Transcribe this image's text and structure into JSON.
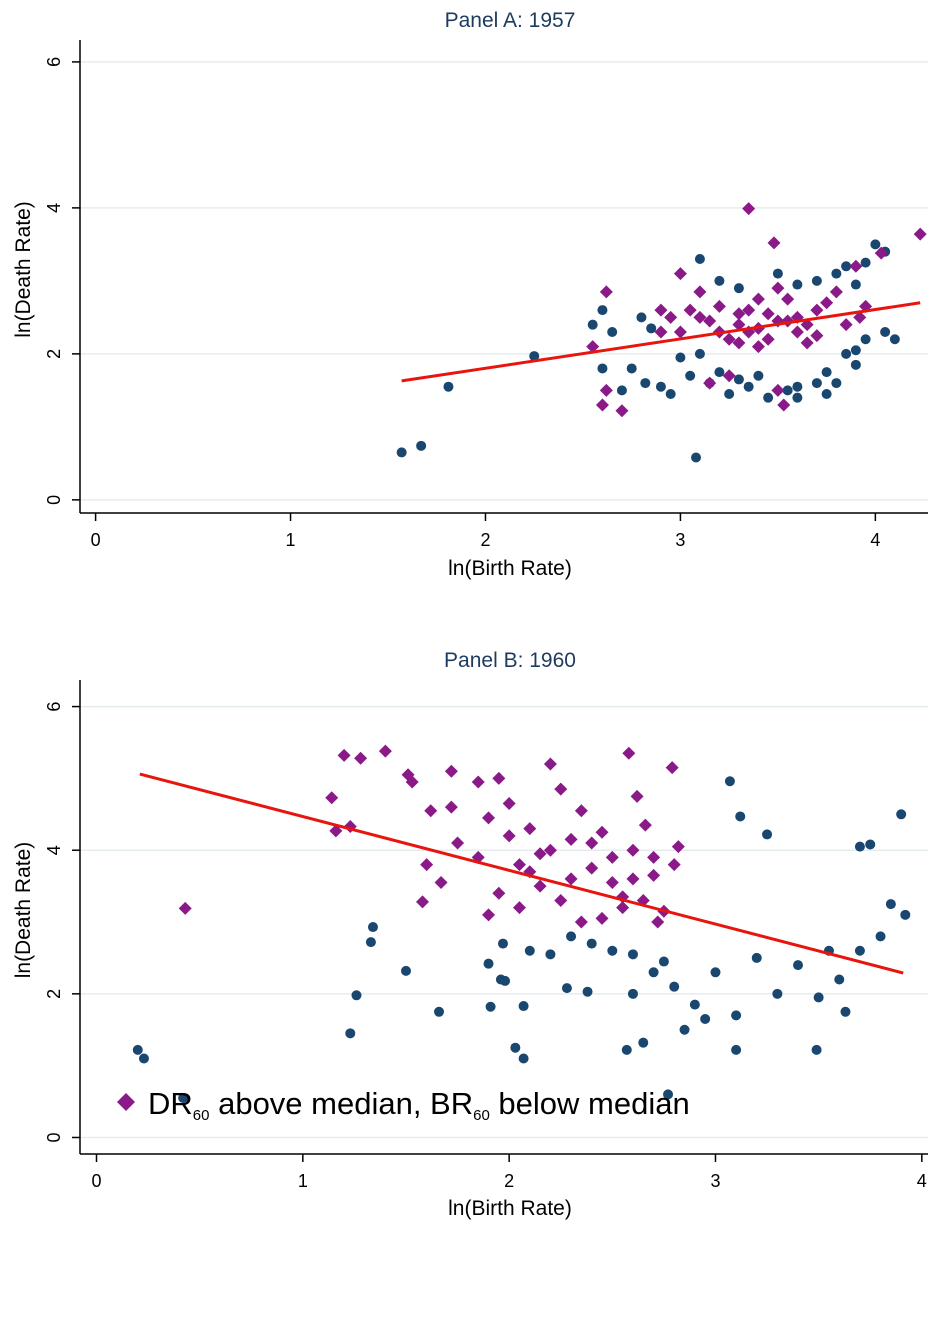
{
  "chart_data": [
    {
      "type": "scatter",
      "title": "Panel A: 1957",
      "xlabel": "ln(Birth Rate)",
      "ylabel": "ln(Death Rate)",
      "xlim": [
        -0.08,
        4.27
      ],
      "ylim": [
        -0.18,
        6.3
      ],
      "xticks": [
        0,
        1,
        2,
        3,
        4
      ],
      "yticks": [
        0,
        2,
        4,
        6
      ],
      "grid": true,
      "series": [
        {
          "marker": "circle",
          "color": "#1a476f",
          "points": [
            [
              1.57,
              0.65
            ],
            [
              1.67,
              0.74
            ],
            [
              1.81,
              1.55
            ],
            [
              2.25,
              1.97
            ],
            [
              3.08,
              0.58
            ],
            [
              2.6,
              1.8
            ],
            [
              2.7,
              1.5
            ],
            [
              2.75,
              1.8
            ],
            [
              2.82,
              1.6
            ],
            [
              2.9,
              1.55
            ],
            [
              2.95,
              1.45
            ],
            [
              3.0,
              1.95
            ],
            [
              3.05,
              1.7
            ],
            [
              3.1,
              2.0
            ],
            [
              3.15,
              1.6
            ],
            [
              3.2,
              1.75
            ],
            [
              3.3,
              1.65
            ],
            [
              3.35,
              1.55
            ],
            [
              3.4,
              1.7
            ],
            [
              3.55,
              1.5
            ],
            [
              3.6,
              1.4
            ],
            [
              3.7,
              1.6
            ],
            [
              3.75,
              1.75
            ],
            [
              3.8,
              1.6
            ],
            [
              3.85,
              2.0
            ],
            [
              3.9,
              2.05
            ],
            [
              3.95,
              2.2
            ],
            [
              4.05,
              2.3
            ],
            [
              4.1,
              2.2
            ],
            [
              3.95,
              3.25
            ],
            [
              4.0,
              3.5
            ],
            [
              4.05,
              3.4
            ],
            [
              3.9,
              2.95
            ],
            [
              3.8,
              3.1
            ],
            [
              3.85,
              3.2
            ],
            [
              2.55,
              2.4
            ],
            [
              2.6,
              2.6
            ],
            [
              2.65,
              2.3
            ],
            [
              2.8,
              2.5
            ],
            [
              2.85,
              2.35
            ],
            [
              3.1,
              3.3
            ],
            [
              3.2,
              3.0
            ],
            [
              3.3,
              2.9
            ],
            [
              3.5,
              3.1
            ],
            [
              3.6,
              2.95
            ],
            [
              3.7,
              3.0
            ],
            [
              3.45,
              1.4
            ],
            [
              3.25,
              1.45
            ],
            [
              3.6,
              1.55
            ],
            [
              3.9,
              1.85
            ],
            [
              3.75,
              1.45
            ]
          ]
        },
        {
          "marker": "diamond",
          "color": "#8b1a89",
          "points": [
            [
              3.35,
              3.99
            ],
            [
              3.48,
              3.52
            ],
            [
              4.23,
              3.64
            ],
            [
              2.62,
              2.85
            ],
            [
              2.55,
              2.1
            ],
            [
              2.6,
              1.3
            ],
            [
              2.7,
              1.22
            ],
            [
              2.62,
              1.5
            ],
            [
              2.9,
              2.3
            ],
            [
              3.0,
              3.1
            ],
            [
              3.1,
              2.85
            ],
            [
              3.2,
              2.3
            ],
            [
              3.35,
              2.6
            ],
            [
              3.45,
              2.2
            ],
            [
              3.55,
              2.75
            ],
            [
              3.65,
              2.4
            ],
            [
              3.8,
              2.85
            ],
            [
              3.95,
              2.65
            ],
            [
              4.03,
              3.38
            ],
            [
              3.9,
              3.2
            ],
            [
              3.7,
              2.6
            ],
            [
              3.6,
              2.3
            ],
            [
              3.5,
              2.45
            ],
            [
              3.4,
              2.35
            ],
            [
              3.3,
              2.55
            ],
            [
              3.25,
              2.2
            ],
            [
              3.15,
              2.45
            ],
            [
              3.05,
              2.6
            ],
            [
              2.95,
              2.5
            ],
            [
              3.5,
              1.5
            ],
            [
              3.53,
              1.3
            ],
            [
              3.25,
              1.7
            ],
            [
              3.15,
              1.6
            ],
            [
              3.4,
              2.75
            ],
            [
              3.5,
              2.9
            ],
            [
              3.3,
              2.4
            ],
            [
              3.45,
              2.55
            ],
            [
              3.6,
              2.5
            ],
            [
              3.2,
              2.65
            ],
            [
              3.35,
              2.3
            ],
            [
              3.7,
              2.25
            ],
            [
              3.75,
              2.7
            ],
            [
              3.1,
              2.5
            ],
            [
              3.0,
              2.3
            ],
            [
              2.9,
              2.6
            ],
            [
              3.55,
              2.45
            ],
            [
              3.65,
              2.15
            ],
            [
              3.85,
              2.4
            ],
            [
              3.92,
              2.5
            ],
            [
              3.4,
              2.1
            ],
            [
              3.3,
              2.15
            ]
          ]
        }
      ],
      "fit_line": {
        "x": [
          1.57,
          4.23
        ],
        "y": [
          1.63,
          2.7
        ],
        "color": "#e8150f"
      }
    },
    {
      "type": "scatter",
      "title": "Panel B: 1960",
      "xlabel": "ln(Birth Rate)",
      "ylabel": "ln(Death Rate)",
      "xlim": [
        -0.08,
        4.03
      ],
      "ylim": [
        -0.23,
        6.37
      ],
      "xticks": [
        0,
        1,
        2,
        3,
        4
      ],
      "yticks": [
        0,
        2,
        4,
        6
      ],
      "grid": true,
      "series": [
        {
          "marker": "circle",
          "color": "#1a476f",
          "points": [
            [
              0.2,
              1.22
            ],
            [
              0.23,
              1.1
            ],
            [
              0.42,
              0.55
            ],
            [
              1.23,
              1.45
            ],
            [
              1.26,
              1.98
            ],
            [
              1.33,
              2.72
            ],
            [
              1.34,
              2.93
            ],
            [
              1.5,
              2.32
            ],
            [
              1.66,
              1.75
            ],
            [
              1.9,
              2.42
            ],
            [
              1.96,
              2.2
            ],
            [
              1.98,
              2.18
            ],
            [
              1.91,
              1.82
            ],
            [
              2.03,
              1.25
            ],
            [
              2.07,
              1.1
            ],
            [
              2.07,
              1.83
            ],
            [
              2.28,
              2.08
            ],
            [
              2.38,
              2.03
            ],
            [
              2.57,
              1.22
            ],
            [
              2.65,
              1.32
            ],
            [
              2.77,
              0.6
            ],
            [
              2.85,
              1.5
            ],
            [
              3.07,
              4.96
            ],
            [
              3.12,
              4.47
            ],
            [
              3.25,
              4.22
            ],
            [
              3.63,
              1.75
            ],
            [
              3.49,
              1.22
            ],
            [
              3.1,
              1.22
            ],
            [
              3.9,
              4.5
            ],
            [
              3.75,
              4.08
            ],
            [
              3.7,
              4.05
            ],
            [
              3.85,
              3.25
            ],
            [
              3.92,
              3.1
            ],
            [
              3.8,
              2.8
            ],
            [
              3.6,
              2.2
            ],
            [
              3.5,
              1.95
            ],
            [
              3.3,
              2.0
            ],
            [
              3.1,
              1.7
            ],
            [
              2.95,
              1.65
            ],
            [
              2.9,
              1.85
            ],
            [
              2.8,
              2.1
            ],
            [
              2.7,
              2.3
            ],
            [
              2.6,
              2.55
            ],
            [
              2.5,
              2.6
            ],
            [
              2.4,
              2.7
            ],
            [
              2.3,
              2.8
            ],
            [
              2.2,
              2.55
            ],
            [
              2.1,
              2.6
            ],
            [
              1.97,
              2.7
            ],
            [
              2.6,
              2.0
            ],
            [
              2.75,
              2.45
            ],
            [
              3.0,
              2.3
            ],
            [
              3.2,
              2.5
            ],
            [
              3.4,
              2.4
            ],
            [
              3.55,
              2.6
            ],
            [
              3.7,
              2.6
            ]
          ]
        },
        {
          "marker": "diamond",
          "color": "#8b1a89",
          "points": [
            [
              0.43,
              3.19
            ],
            [
              1.14,
              4.73
            ],
            [
              1.16,
              4.27
            ],
            [
              1.2,
              5.32
            ],
            [
              1.23,
              4.33
            ],
            [
              1.28,
              5.28
            ],
            [
              1.4,
              5.38
            ],
            [
              1.51,
              5.05
            ],
            [
              1.53,
              4.95
            ],
            [
              1.58,
              3.28
            ],
            [
              1.6,
              3.8
            ],
            [
              1.62,
              4.55
            ],
            [
              1.67,
              3.55
            ],
            [
              1.72,
              5.1
            ],
            [
              1.72,
              4.6
            ],
            [
              1.75,
              4.1
            ],
            [
              1.85,
              4.95
            ],
            [
              1.9,
              4.45
            ],
            [
              1.95,
              5.0
            ],
            [
              2.0,
              4.65
            ],
            [
              2.05,
              3.8
            ],
            [
              2.1,
              4.3
            ],
            [
              2.15,
              3.95
            ],
            [
              2.2,
              5.2
            ],
            [
              2.25,
              4.85
            ],
            [
              2.3,
              4.15
            ],
            [
              2.35,
              4.55
            ],
            [
              2.4,
              3.75
            ],
            [
              2.45,
              4.25
            ],
            [
              2.5,
              3.55
            ],
            [
              2.55,
              3.35
            ],
            [
              2.58,
              5.35
            ],
            [
              2.6,
              4.0
            ],
            [
              2.62,
              4.75
            ],
            [
              2.66,
              4.35
            ],
            [
              2.7,
              3.65
            ],
            [
              2.75,
              3.15
            ],
            [
              2.79,
              5.15
            ],
            [
              2.82,
              4.05
            ],
            [
              1.9,
              3.1
            ],
            [
              1.95,
              3.4
            ],
            [
              2.05,
              3.2
            ],
            [
              2.15,
              3.5
            ],
            [
              2.25,
              3.3
            ],
            [
              2.35,
              3.0
            ],
            [
              2.45,
              3.05
            ],
            [
              2.55,
              3.2
            ],
            [
              2.65,
              3.3
            ],
            [
              2.72,
              3.0
            ],
            [
              2.8,
              3.8
            ],
            [
              2.3,
              3.6
            ],
            [
              2.4,
              4.1
            ],
            [
              2.5,
              3.9
            ],
            [
              2.2,
              4.0
            ],
            [
              2.1,
              3.7
            ],
            [
              2.0,
              4.2
            ],
            [
              1.85,
              3.9
            ],
            [
              2.6,
              3.6
            ],
            [
              2.7,
              3.9
            ]
          ]
        }
      ],
      "fit_line": {
        "x": [
          0.21,
          3.91
        ],
        "y": [
          5.06,
          2.29
        ],
        "color": "#e8150f"
      }
    }
  ],
  "legend": {
    "marker_icon": "purple-diamond",
    "text_a": "DR",
    "sub_a": "60",
    "text_b": " above median, BR",
    "sub_b": "60",
    "text_c": " below median"
  }
}
